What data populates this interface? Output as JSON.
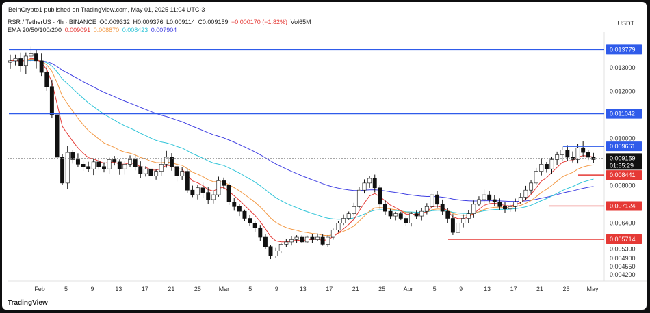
{
  "header": {
    "published_line": "BeInCrypto1 published on TradingView.com, May 01, 2025 11:04 UTC-3",
    "symbol_line": "RSR / TetherUS · 4h · BINANCE",
    "ohlc": {
      "o": "O0.009332",
      "h": "H0.009376",
      "l": "L0.009114",
      "c": "C0.009159",
      "change": "−0.000170 (−1.82%)",
      "vol": "Vol65M"
    },
    "ema_label": "EMA 20/50/100/200",
    "ema_values": [
      "0.009091",
      "0.008870",
      "0.008423",
      "0.007904"
    ],
    "currency": "USDT"
  },
  "footer": {
    "brand": "TradingView"
  },
  "chart_data": {
    "type": "candlestick",
    "x_ticks": [
      "Feb",
      "5",
      "9",
      "13",
      "17",
      "21",
      "25",
      "Mar",
      "5",
      "9",
      "13",
      "17",
      "21",
      "25",
      "Apr",
      "5",
      "9",
      "13",
      "17",
      "21",
      "25",
      "May"
    ],
    "y_ticks": [
      "0.013000",
      "0.012000",
      "0.010000",
      "0.008000",
      "0.007000",
      "0.006400",
      "0.005300",
      "0.004900",
      "0.004550",
      "0.004200"
    ],
    "levels": [
      {
        "value": "0.013779",
        "color": "#2f5bea"
      },
      {
        "value": "0.011042",
        "color": "#2f5bea"
      },
      {
        "value": "0.009661",
        "color": "#2f5bea"
      },
      {
        "value": "0.008441",
        "color": "#e53935"
      },
      {
        "value": "0.007124",
        "color": "#e53935"
      },
      {
        "value": "0.005714",
        "color": "#e53935"
      }
    ],
    "current_price": "0.009159",
    "countdown": "01:55:29",
    "price_range": [
      0.004,
      0.0144
    ],
    "ema_colors": {
      "ema20": "#e53935",
      "ema50": "#f39a46",
      "ema100": "#2ec4d8",
      "ema200": "#3f3fe2"
    },
    "candle_colors": {
      "up": "#ffffff",
      "down": "#111111",
      "outline": "#111111"
    },
    "series": [
      {
        "name": "Price",
        "key": "price",
        "values": [
          0.0133,
          0.0134,
          0.0131,
          0.0135,
          0.0136,
          0.0133,
          0.0128,
          0.0122,
          0.011,
          0.0092,
          0.0081,
          0.0094,
          0.0091,
          0.0089,
          0.0088,
          0.0087,
          0.009,
          0.0088,
          0.0087,
          0.0091,
          0.009,
          0.0087,
          0.0089,
          0.0091,
          0.0088,
          0.0085,
          0.0087,
          0.0084,
          0.0086,
          0.0089,
          0.0092,
          0.0088,
          0.0084,
          0.0086,
          0.0078,
          0.0076,
          0.0079,
          0.0077,
          0.0074,
          0.0076,
          0.0082,
          0.008,
          0.0073,
          0.0071,
          0.0069,
          0.0066,
          0.0064,
          0.0062,
          0.0058,
          0.0054,
          0.005,
          0.0052,
          0.0055,
          0.0056,
          0.0057,
          0.0058,
          0.0056,
          0.0058,
          0.0057,
          0.0058,
          0.0055,
          0.0058,
          0.0061,
          0.0064,
          0.0066,
          0.0068,
          0.0071,
          0.0078,
          0.0081,
          0.0083,
          0.0079,
          0.0072,
          0.0069,
          0.0067,
          0.0068,
          0.0066,
          0.0064,
          0.0068,
          0.0067,
          0.0069,
          0.0071,
          0.0076,
          0.0072,
          0.0069,
          0.0066,
          0.006,
          0.0064,
          0.0066,
          0.0068,
          0.0072,
          0.0074,
          0.0076,
          0.0074,
          0.0073,
          0.0071,
          0.007,
          0.0071,
          0.0073,
          0.0075,
          0.0078,
          0.0081,
          0.0086,
          0.0089,
          0.0087,
          0.0091,
          0.0093,
          0.0095,
          0.0092,
          0.0091,
          0.0096,
          0.0094,
          0.0092,
          0.0091
        ]
      },
      {
        "name": "EMA 20",
        "key": "ema20",
        "values": []
      },
      {
        "name": "EMA 50",
        "key": "ema50",
        "values": []
      },
      {
        "name": "EMA 100",
        "key": "ema100",
        "values": []
      },
      {
        "name": "EMA 200",
        "key": "ema200",
        "values": []
      }
    ]
  }
}
